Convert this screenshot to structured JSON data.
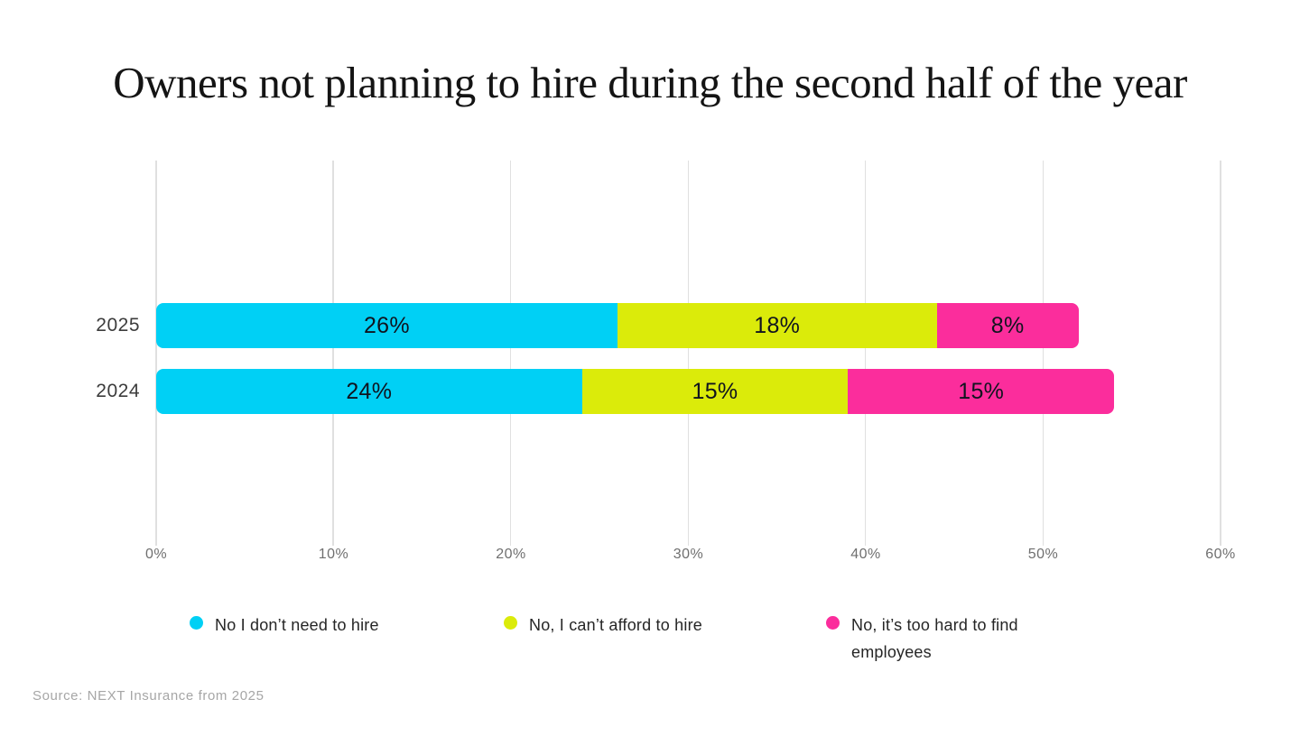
{
  "chart_data": {
    "type": "bar",
    "orientation": "horizontal",
    "stacked": true,
    "title": "Owners not planning to hire during the second half of the year",
    "categories": [
      "2025",
      "2024"
    ],
    "series": [
      {
        "name": "No I don’t need to hire",
        "color": "#00D0F5",
        "values": [
          26,
          24
        ]
      },
      {
        "name": "No, I can’t afford to hire",
        "color": "#DBEB0A",
        "values": [
          18,
          15
        ]
      },
      {
        "name": "No, it’s too hard to find employees",
        "color": "#FB2D9C",
        "values": [
          8,
          15
        ]
      }
    ],
    "x_ticks": [
      "0%",
      "10%",
      "20%",
      "30%",
      "40%",
      "50%",
      "60%"
    ],
    "xlim": [
      0,
      60
    ],
    "grid": true,
    "legend_position": "bottom",
    "value_label_suffix": "%",
    "value_label_color": "#10141f",
    "source": "Source: NEXT Insurance from 2025"
  }
}
